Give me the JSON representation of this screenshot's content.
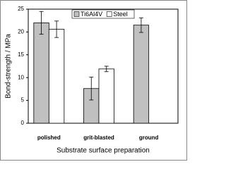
{
  "chart_data": {
    "type": "bar",
    "y_label": "Bond-strength / MPa",
    "x_label": "Substrate surface preparation",
    "categories": [
      "polished",
      "grit-blasted",
      "ground"
    ],
    "series": [
      {
        "name": "Ti6Al4V",
        "color": "#c0c0c0",
        "values": [
          22,
          7.6,
          21.5
        ],
        "errors": [
          2.5,
          2.5,
          1.6
        ]
      },
      {
        "name": "Steel",
        "color": "#ffffff",
        "values": [
          20.6,
          11.9,
          null
        ],
        "errors": [
          1.8,
          0.6,
          null
        ]
      }
    ],
    "ylim": [
      0,
      25
    ],
    "yticks": [
      0,
      5,
      10,
      15,
      20,
      25
    ],
    "legend": "upper center"
  }
}
